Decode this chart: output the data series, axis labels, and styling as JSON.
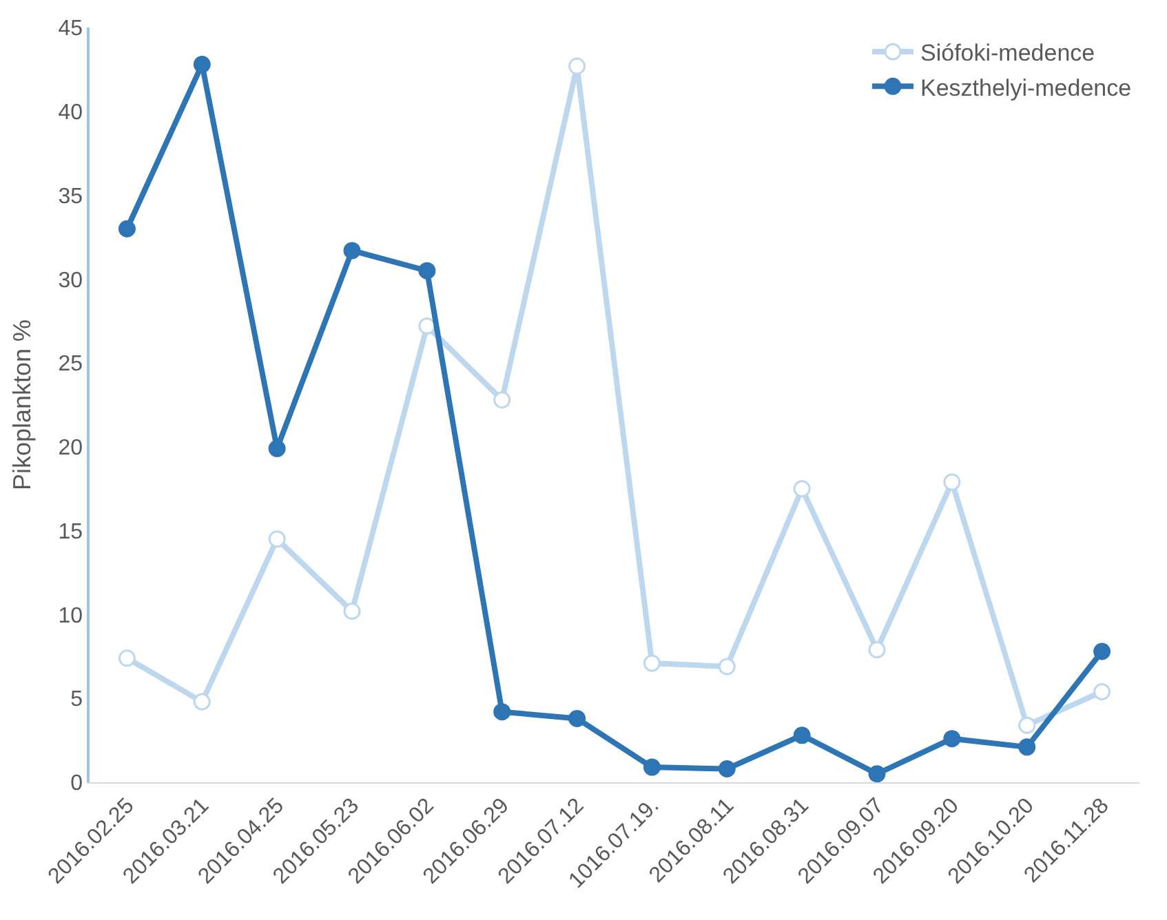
{
  "chart_data": {
    "type": "line",
    "ylabel": "Pikoplankton %",
    "categories": [
      "2016.02.25",
      "2016.03.21",
      "2016.04.25",
      "2016.05.23",
      "2016.06.02",
      "2016.06.29",
      "2016.07.12",
      "1016.07.19.",
      "2016.08.11",
      "2016.08.31",
      "2016.09.07",
      "2016.09.20",
      "2016.10.20",
      "2016.11.28"
    ],
    "series": [
      {
        "name": "Siófoki-medence",
        "color": "#bdd7ee",
        "values": [
          7.4,
          4.8,
          14.5,
          10.2,
          27.2,
          22.8,
          42.7,
          7.1,
          6.9,
          17.5,
          7.9,
          17.9,
          3.4,
          5.4
        ]
      },
      {
        "name": "Keszthelyi-medence",
        "color": "#2e75b6",
        "values": [
          33.0,
          42.8,
          19.9,
          31.7,
          30.5,
          4.2,
          3.8,
          0.9,
          0.8,
          2.8,
          0.5,
          2.6,
          2.1,
          7.8
        ]
      }
    ],
    "ylim": [
      0,
      45
    ],
    "yticks": [
      0,
      5,
      10,
      15,
      20,
      25,
      30,
      35,
      40,
      45
    ],
    "grid": false,
    "legend": "top right",
    "marker": "circle",
    "line_style": "solid"
  }
}
